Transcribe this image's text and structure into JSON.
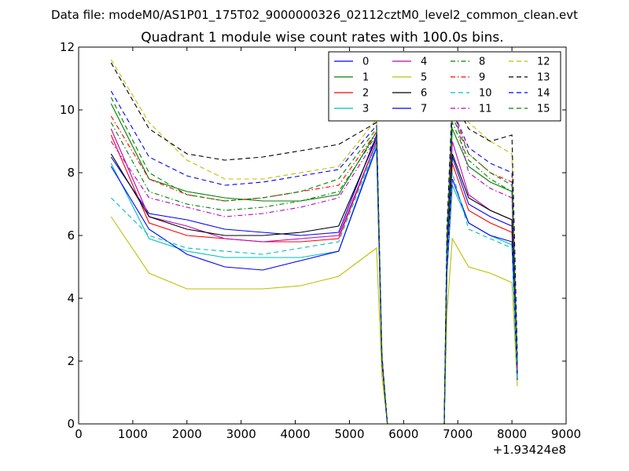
{
  "chart_data": {
    "type": "line",
    "suptitle": "Data file: modeM0/AS1P01_175T02_9000000326_02112cztM0_level2_common_clean.evt",
    "title": "Quadrant 1 module wise count rates with 100.0s bins.",
    "xlabel": "",
    "ylabel": "",
    "x_offset_label": "+1.93424e8",
    "xlim": [
      0,
      9000
    ],
    "ylim": [
      0,
      12
    ],
    "xticks": [
      0,
      1000,
      2000,
      3000,
      4000,
      5000,
      6000,
      7000,
      8000,
      9000
    ],
    "yticks": [
      0,
      2,
      4,
      6,
      8,
      10,
      12
    ],
    "grid": false,
    "legend_placement": "top-right",
    "legend_columns": 4,
    "x": [
      600,
      1300,
      2000,
      2700,
      3400,
      4100,
      4800,
      5500,
      5600,
      5700,
      6000,
      6500,
      6750,
      6800,
      6900,
      7200,
      7600,
      8000,
      8100
    ],
    "series": [
      {
        "name": "0",
        "color": "#0000ff",
        "dash": "solid",
        "values": [
          8.5,
          6.7,
          6.5,
          6.2,
          6.1,
          6.0,
          6.1,
          9.2,
          2.0,
          0,
          0,
          0,
          0,
          5.0,
          8.5,
          7.0,
          6.6,
          6.3,
          1.5
        ]
      },
      {
        "name": "1",
        "color": "#008000",
        "dash": "solid",
        "values": [
          10.2,
          7.8,
          7.4,
          7.2,
          7.1,
          7.1,
          7.3,
          9.3,
          2.0,
          0,
          0,
          0,
          0,
          5.5,
          9.4,
          8.2,
          7.7,
          7.4,
          1.8
        ]
      },
      {
        "name": "2",
        "color": "#ff0000",
        "dash": "solid",
        "values": [
          9.2,
          6.4,
          6.0,
          5.9,
          5.8,
          5.8,
          5.9,
          9.0,
          2.0,
          0,
          0,
          0,
          0,
          5.0,
          8.3,
          6.8,
          6.4,
          6.1,
          1.5
        ]
      },
      {
        "name": "3",
        "color": "#00bfbf",
        "dash": "solid",
        "values": [
          8.3,
          5.9,
          5.5,
          5.3,
          5.3,
          5.3,
          5.5,
          8.9,
          2.0,
          0,
          0,
          0,
          0,
          4.8,
          7.6,
          6.4,
          6.0,
          5.7,
          1.4
        ]
      },
      {
        "name": "4",
        "color": "#bf00bf",
        "dash": "solid",
        "values": [
          9.4,
          6.6,
          6.3,
          5.9,
          5.8,
          5.9,
          6.0,
          9.0,
          2.0,
          0,
          0,
          0,
          0,
          5.0,
          9.0,
          7.3,
          6.8,
          6.5,
          1.6
        ]
      },
      {
        "name": "5",
        "color": "#bfbf00",
        "dash": "solid",
        "values": [
          6.6,
          4.8,
          4.3,
          4.3,
          4.3,
          4.4,
          4.7,
          5.6,
          1.5,
          0,
          0,
          0,
          0,
          3.5,
          5.9,
          5.0,
          4.8,
          4.5,
          1.2
        ]
      },
      {
        "name": "6",
        "color": "#000000",
        "dash": "solid",
        "values": [
          8.6,
          6.6,
          6.2,
          6.0,
          6.0,
          6.1,
          6.3,
          9.1,
          2.0,
          0,
          0,
          0,
          0,
          5.2,
          8.6,
          7.2,
          6.8,
          6.5,
          1.6
        ]
      },
      {
        "name": "7",
        "color": "#0000ff",
        "dash": "solid",
        "values": [
          8.2,
          6.2,
          5.4,
          5.0,
          4.9,
          5.2,
          5.5,
          8.8,
          2.0,
          0,
          0,
          0,
          0,
          4.8,
          7.8,
          6.4,
          6.0,
          5.8,
          1.4
        ]
      },
      {
        "name": "8",
        "color": "#008000",
        "dash": "dashdot",
        "values": [
          9.6,
          7.4,
          7.0,
          6.8,
          6.9,
          7.1,
          7.4,
          9.2,
          2.0,
          0,
          0,
          0,
          0,
          5.5,
          9.6,
          8.4,
          7.8,
          7.4,
          1.8
        ]
      },
      {
        "name": "9",
        "color": "#ff0000",
        "dash": "dashdot",
        "values": [
          9.8,
          7.8,
          7.3,
          7.1,
          7.2,
          7.4,
          7.6,
          9.3,
          2.0,
          0,
          0,
          0,
          0,
          5.6,
          10.0,
          8.6,
          8.0,
          7.7,
          1.8
        ]
      },
      {
        "name": "10",
        "color": "#00bfbf",
        "dash": "dashed",
        "values": [
          7.2,
          6.0,
          5.6,
          5.5,
          5.4,
          5.6,
          5.8,
          8.9,
          2.0,
          0,
          0,
          0,
          0,
          5.0,
          8.0,
          6.2,
          5.9,
          5.6,
          1.4
        ]
      },
      {
        "name": "11",
        "color": "#bf00bf",
        "dash": "dashdot",
        "values": [
          9.0,
          7.2,
          6.9,
          6.6,
          6.7,
          6.9,
          7.2,
          9.1,
          2.0,
          0,
          0,
          0,
          0,
          5.4,
          10.2,
          8.0,
          7.5,
          7.2,
          1.7
        ]
      },
      {
        "name": "12",
        "color": "#bfbf00",
        "dash": "dashed",
        "values": [
          11.6,
          9.6,
          8.4,
          7.8,
          7.8,
          8.0,
          8.2,
          9.7,
          2.2,
          0,
          0,
          0,
          0,
          6.0,
          10.4,
          9.6,
          9.0,
          8.6,
          2.0
        ]
      },
      {
        "name": "13",
        "color": "#000000",
        "dash": "dashed",
        "values": [
          11.5,
          9.4,
          8.6,
          8.4,
          8.5,
          8.7,
          8.9,
          9.6,
          2.2,
          0,
          0,
          0,
          0,
          6.2,
          10.4,
          9.4,
          9.0,
          9.2,
          2.2
        ]
      },
      {
        "name": "14",
        "color": "#0000ff",
        "dash": "dashed",
        "values": [
          10.6,
          8.5,
          7.9,
          7.6,
          7.7,
          7.9,
          8.1,
          9.5,
          2.1,
          0,
          0,
          0,
          0,
          5.8,
          10.0,
          8.8,
          8.3,
          8.0,
          1.9
        ]
      },
      {
        "name": "15",
        "color": "#008000",
        "dash": "dashed",
        "values": [
          10.4,
          8.0,
          7.3,
          7.1,
          7.2,
          7.4,
          7.8,
          9.4,
          2.1,
          0,
          0,
          0,
          0,
          5.7,
          9.8,
          8.6,
          8.0,
          7.6,
          1.9
        ]
      }
    ]
  }
}
